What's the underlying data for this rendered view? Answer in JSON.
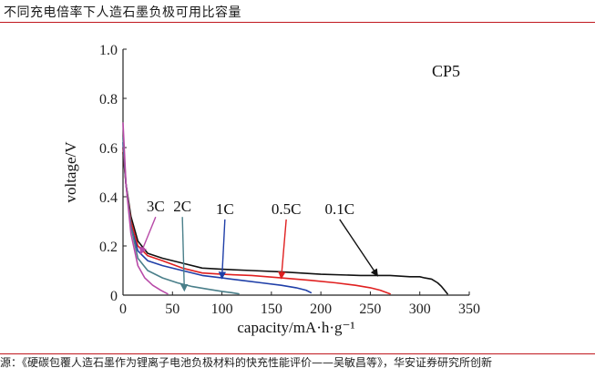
{
  "header": {
    "title": "不同充电倍率下人造石墨负极可用比容量"
  },
  "footer": {
    "source_text": "源：《硬碳包覆人造石墨作为锂离子电池负极材料的快充性能评价——吴敏昌等》，华安证券研究所创新"
  },
  "chart_data": {
    "type": "line",
    "title": "CP5",
    "xlabel": "capacity/mA·h·g⁻¹",
    "ylabel": "voltage/V",
    "xlim": [
      0,
      350
    ],
    "ylim": [
      0,
      1.0
    ],
    "x_ticks": [
      0,
      50,
      100,
      150,
      200,
      250,
      300,
      350
    ],
    "y_ticks": [
      0,
      0.2,
      0.4,
      0.6,
      0.8,
      1.0
    ],
    "x_tick_labels": [
      "0",
      "50",
      "100",
      "150",
      "200",
      "250",
      "300",
      "350"
    ],
    "y_tick_labels": [
      "0",
      "0.2",
      "0.4",
      "0.6",
      "0.8",
      "1.0"
    ],
    "grid": false,
    "series": [
      {
        "name": "0.1C",
        "color": "#111111",
        "x": [
          0,
          3,
          8,
          15,
          25,
          40,
          60,
          80,
          100,
          130,
          160,
          200,
          240,
          270,
          290,
          300,
          305,
          312,
          318,
          322,
          325,
          328
        ],
        "y": [
          0.58,
          0.45,
          0.32,
          0.22,
          0.17,
          0.15,
          0.13,
          0.11,
          0.105,
          0.1,
          0.095,
          0.085,
          0.08,
          0.08,
          0.075,
          0.075,
          0.07,
          0.065,
          0.05,
          0.035,
          0.02,
          0.005
        ]
      },
      {
        "name": "0.5C",
        "color": "#e02020",
        "x": [
          0,
          3,
          8,
          15,
          25,
          40,
          60,
          80,
          100,
          130,
          160,
          190,
          215,
          235,
          250,
          260,
          270
        ],
        "y": [
          0.6,
          0.45,
          0.3,
          0.2,
          0.16,
          0.14,
          0.11,
          0.09,
          0.085,
          0.08,
          0.07,
          0.06,
          0.05,
          0.04,
          0.03,
          0.02,
          0.005
        ]
      },
      {
        "name": "1C",
        "color": "#1f3fa8",
        "x": [
          0,
          3,
          8,
          15,
          25,
          40,
          60,
          80,
          100,
          120,
          140,
          160,
          175,
          185,
          190
        ],
        "y": [
          0.62,
          0.45,
          0.28,
          0.18,
          0.14,
          0.12,
          0.1,
          0.08,
          0.07,
          0.06,
          0.05,
          0.04,
          0.03,
          0.02,
          0.01
        ]
      },
      {
        "name": "2C",
        "color": "#4a7f8a",
        "x": [
          0,
          3,
          8,
          15,
          25,
          40,
          55,
          70,
          85,
          100,
          110,
          117
        ],
        "y": [
          0.64,
          0.45,
          0.28,
          0.15,
          0.1,
          0.07,
          0.05,
          0.035,
          0.025,
          0.015,
          0.01,
          0.005
        ]
      },
      {
        "name": "3C",
        "color": "#b84aa8",
        "x": [
          0,
          3,
          8,
          15,
          22,
          30,
          38,
          45
        ],
        "y": [
          0.7,
          0.45,
          0.25,
          0.12,
          0.07,
          0.04,
          0.02,
          0.005
        ]
      }
    ],
    "annotations": [
      {
        "text": "3C",
        "x": 33,
        "y": 0.34,
        "arrow_to": [
          18,
          0.17
        ],
        "color": "#b84aa8"
      },
      {
        "text": "2C",
        "x": 60,
        "y": 0.34,
        "arrow_to": [
          62,
          0.02
        ],
        "color": "#4a7f8a"
      },
      {
        "text": "1C",
        "x": 103,
        "y": 0.33,
        "arrow_to": [
          100,
          0.07
        ],
        "color": "#1f3fa8"
      },
      {
        "text": "0.5C",
        "x": 165,
        "y": 0.33,
        "arrow_to": [
          160,
          0.07
        ],
        "color": "#e02020"
      },
      {
        "text": "0.1C",
        "x": 219,
        "y": 0.33,
        "arrow_to": [
          257,
          0.08
        ],
        "color": "#111111"
      }
    ]
  }
}
